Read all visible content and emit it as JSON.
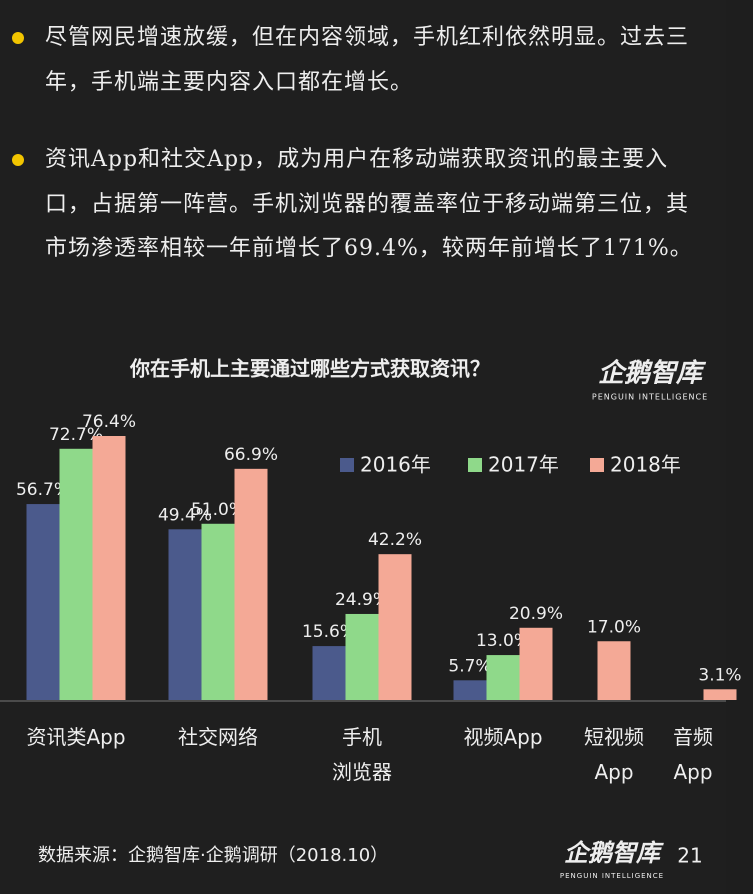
{
  "bullets": [
    "尽管网民增速放缓，但在内容领域，手机红利依然明显。过去三年，手机端主要内容入口都在增长。",
    "资讯App和社交App，成为用户在移动端获取资讯的最主要入口，占据第一阵营。手机浏览器的覆盖率位于移动端第三位，其市场渗透率相较一年前增长了69.4%，较两年前增长了171%。"
  ],
  "logo": {
    "name": "企鹅智库",
    "tagline": "PENGUIN INTELLIGENCE"
  },
  "chart_data": {
    "type": "bar",
    "title": "你在手机上主要通过哪些方式获取资讯？",
    "categories": [
      "资讯类App",
      "社交网络",
      "手机\n浏览器",
      "视频App",
      "短视频\nApp",
      "音频\nApp"
    ],
    "series": [
      {
        "name": "2016年",
        "color": "#4b5a8c",
        "values": [
          56.7,
          49.4,
          15.6,
          5.7,
          null,
          null
        ],
        "value_labels": [
          "56.7%",
          "49.4%",
          "15.6%",
          "5.7%",
          null,
          null
        ]
      },
      {
        "name": "2017年",
        "color": "#8fd98a",
        "values": [
          72.7,
          51.0,
          24.9,
          13.0,
          null,
          null
        ],
        "value_labels": [
          "72.7%",
          "51.0%",
          "24.9%",
          "13.0%",
          null,
          null
        ]
      },
      {
        "name": "2018年",
        "color": "#f4a996",
        "values": [
          76.4,
          66.9,
          42.2,
          20.9,
          17.0,
          3.1
        ],
        "value_labels": [
          "76.4%",
          "66.9%",
          "42.2%",
          "20.9%",
          "17.0%",
          "3.1%"
        ]
      }
    ]
  },
  "source": "数据来源：企鹅智库·企鹅调研（2018.10）",
  "page_number": "21"
}
